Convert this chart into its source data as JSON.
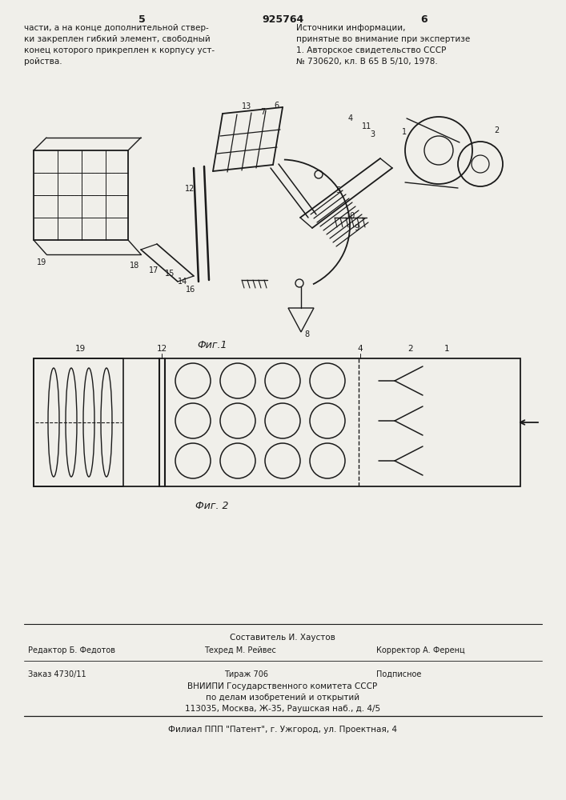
{
  "page_number_left": "5",
  "page_number_center": "925764",
  "page_number_right": "6",
  "text_left": "части, а на конце дополнительной ствер-\nки закреплен гибкий элемент, свободный\nконец которого прикреплен к корпусу уст-\nройства.",
  "text_right_title": "Источники информации,",
  "text_right_sub": "принятые во внимание при экспертизе",
  "text_right_ref1": "1. Авторское свидетельство СССР",
  "text_right_ref2": "№ 730620, кл. В 65 В 5/10, 1978.",
  "fig1_label": "Фиг.1",
  "fig2_label": "Фиг. 2",
  "footer_sestavitel": "Составитель И. Хаустов",
  "footer_editor": "Редактор Б. Федотов",
  "footer_tekhred": "Техред М. Рейвес",
  "footer_korrektor": "Корректор А. Ференц",
  "footer_zakaz": "Заказ 4730/11",
  "footer_tirazh": "Тираж 706",
  "footer_podpisnoe": "Подписное",
  "footer_vniiipi": "ВНИИПИ Государственного комитета СССР",
  "footer_po_delam": "по делам изобретений и открытий",
  "footer_address": "113035, Москва, Ж-35, Раушская наб., д. 4/5",
  "footer_filial": "Филиал ППП \"Патент\", г. Ужгород, ул. Проектная, 4",
  "bg_color": "#f0efea",
  "line_color": "#1a1a1a"
}
